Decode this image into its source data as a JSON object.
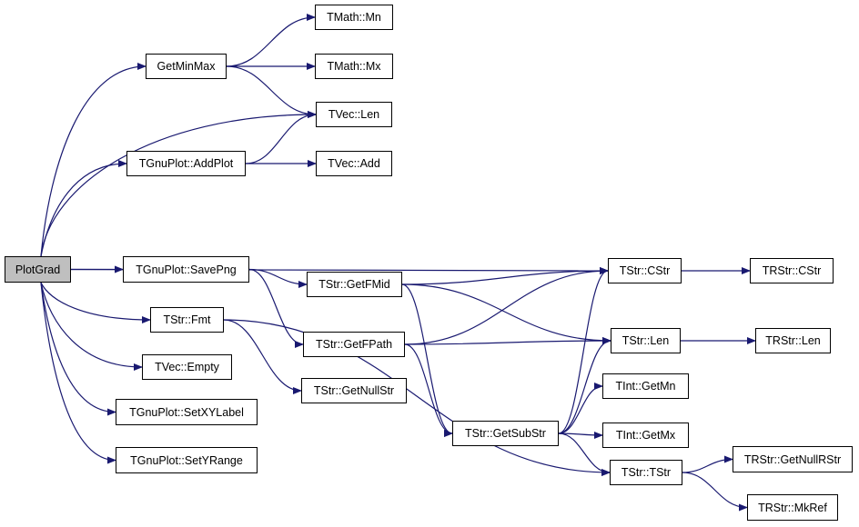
{
  "colors": {
    "edge": "#191970",
    "root_fill": "#bfbfbf",
    "node_fill": "#ffffff",
    "border": "#000000"
  },
  "nodes": [
    {
      "id": "plotgrad",
      "label": "PlotGrad",
      "root": true
    },
    {
      "id": "getminmax",
      "label": "GetMinMax"
    },
    {
      "id": "tmath_mn",
      "label": "TMath::Mn"
    },
    {
      "id": "tmath_mx",
      "label": "TMath::Mx"
    },
    {
      "id": "tvec_len",
      "label": "TVec::Len"
    },
    {
      "id": "addplot",
      "label": "TGnuPlot::AddPlot"
    },
    {
      "id": "tvec_add",
      "label": "TVec::Add"
    },
    {
      "id": "savepng",
      "label": "TGnuPlot::SavePng"
    },
    {
      "id": "tstr_fmt",
      "label": "TStr::Fmt"
    },
    {
      "id": "tvec_empty",
      "label": "TVec::Empty"
    },
    {
      "id": "setxylabel",
      "label": "TGnuPlot::SetXYLabel"
    },
    {
      "id": "setyrange",
      "label": "TGnuPlot::SetYRange"
    },
    {
      "id": "getfmid",
      "label": "TStr::GetFMid"
    },
    {
      "id": "getfpath",
      "label": "TStr::GetFPath"
    },
    {
      "id": "getnullstr",
      "label": "TStr::GetNullStr"
    },
    {
      "id": "getsubstr",
      "label": "TStr::GetSubStr"
    },
    {
      "id": "tstr_cstr",
      "label": "TStr::CStr"
    },
    {
      "id": "tstr_len",
      "label": "TStr::Len"
    },
    {
      "id": "tint_getmn",
      "label": "TInt::GetMn"
    },
    {
      "id": "tint_getmx",
      "label": "TInt::GetMx"
    },
    {
      "id": "tstr_tstr",
      "label": "TStr::TStr"
    },
    {
      "id": "trstr_cstr",
      "label": "TRStr::CStr"
    },
    {
      "id": "trstr_len",
      "label": "TRStr::Len"
    },
    {
      "id": "trstr_getnullrstr",
      "label": "TRStr::GetNullRStr"
    },
    {
      "id": "trstr_mkref",
      "label": "TRStr::MkRef"
    }
  ],
  "edges": [
    [
      "plotgrad",
      "getminmax"
    ],
    [
      "plotgrad",
      "tvec_len"
    ],
    [
      "plotgrad",
      "addplot"
    ],
    [
      "plotgrad",
      "tstr_cstr"
    ],
    [
      "plotgrad",
      "savepng"
    ],
    [
      "plotgrad",
      "tstr_fmt"
    ],
    [
      "plotgrad",
      "tvec_empty"
    ],
    [
      "plotgrad",
      "setxylabel"
    ],
    [
      "plotgrad",
      "setyrange"
    ],
    [
      "getminmax",
      "tmath_mn"
    ],
    [
      "getminmax",
      "tmath_mx"
    ],
    [
      "getminmax",
      "tvec_len"
    ],
    [
      "addplot",
      "tvec_len"
    ],
    [
      "addplot",
      "tvec_add"
    ],
    [
      "savepng",
      "getfmid"
    ],
    [
      "savepng",
      "getfpath"
    ],
    [
      "getfmid",
      "tstr_cstr"
    ],
    [
      "getfmid",
      "tstr_len"
    ],
    [
      "getfmid",
      "getsubstr"
    ],
    [
      "getfpath",
      "tstr_cstr"
    ],
    [
      "getfpath",
      "tstr_len"
    ],
    [
      "getfpath",
      "getsubstr"
    ],
    [
      "tstr_fmt",
      "getnullstr"
    ],
    [
      "tstr_fmt",
      "tstr_tstr"
    ],
    [
      "getsubstr",
      "tstr_cstr"
    ],
    [
      "getsubstr",
      "tstr_len"
    ],
    [
      "getsubstr",
      "tint_getmn"
    ],
    [
      "getsubstr",
      "tint_getmx"
    ],
    [
      "getsubstr",
      "tstr_tstr"
    ],
    [
      "tstr_cstr",
      "trstr_cstr"
    ],
    [
      "tstr_len",
      "trstr_len"
    ],
    [
      "tstr_tstr",
      "trstr_getnullrstr"
    ],
    [
      "tstr_tstr",
      "trstr_mkref"
    ]
  ]
}
